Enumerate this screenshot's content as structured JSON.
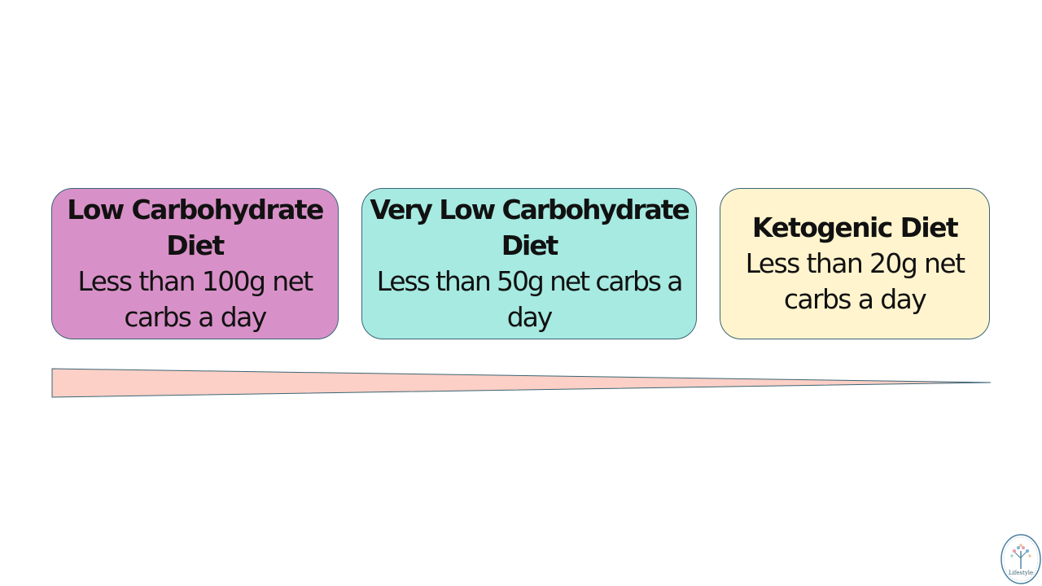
{
  "colors": {
    "card_1_fill": "#d891c8",
    "card_2_fill": "#a6eae1",
    "card_3_fill": "#fff4cd",
    "border": "#3b6474",
    "wedge_fill": "#fcd0c6"
  },
  "cards": [
    {
      "title": "Low Carbohydrate Diet",
      "description": "Less than 100g net carbs a day"
    },
    {
      "title": "Very Low Carbohydrate Diet",
      "description": "Less than 50g net carbs a day"
    },
    {
      "title": "Ketogenic Diet",
      "description": "Less than 20g net carbs a day"
    }
  ],
  "logo": {
    "icon": "tree-logo-icon",
    "text": "Lifestyle"
  }
}
